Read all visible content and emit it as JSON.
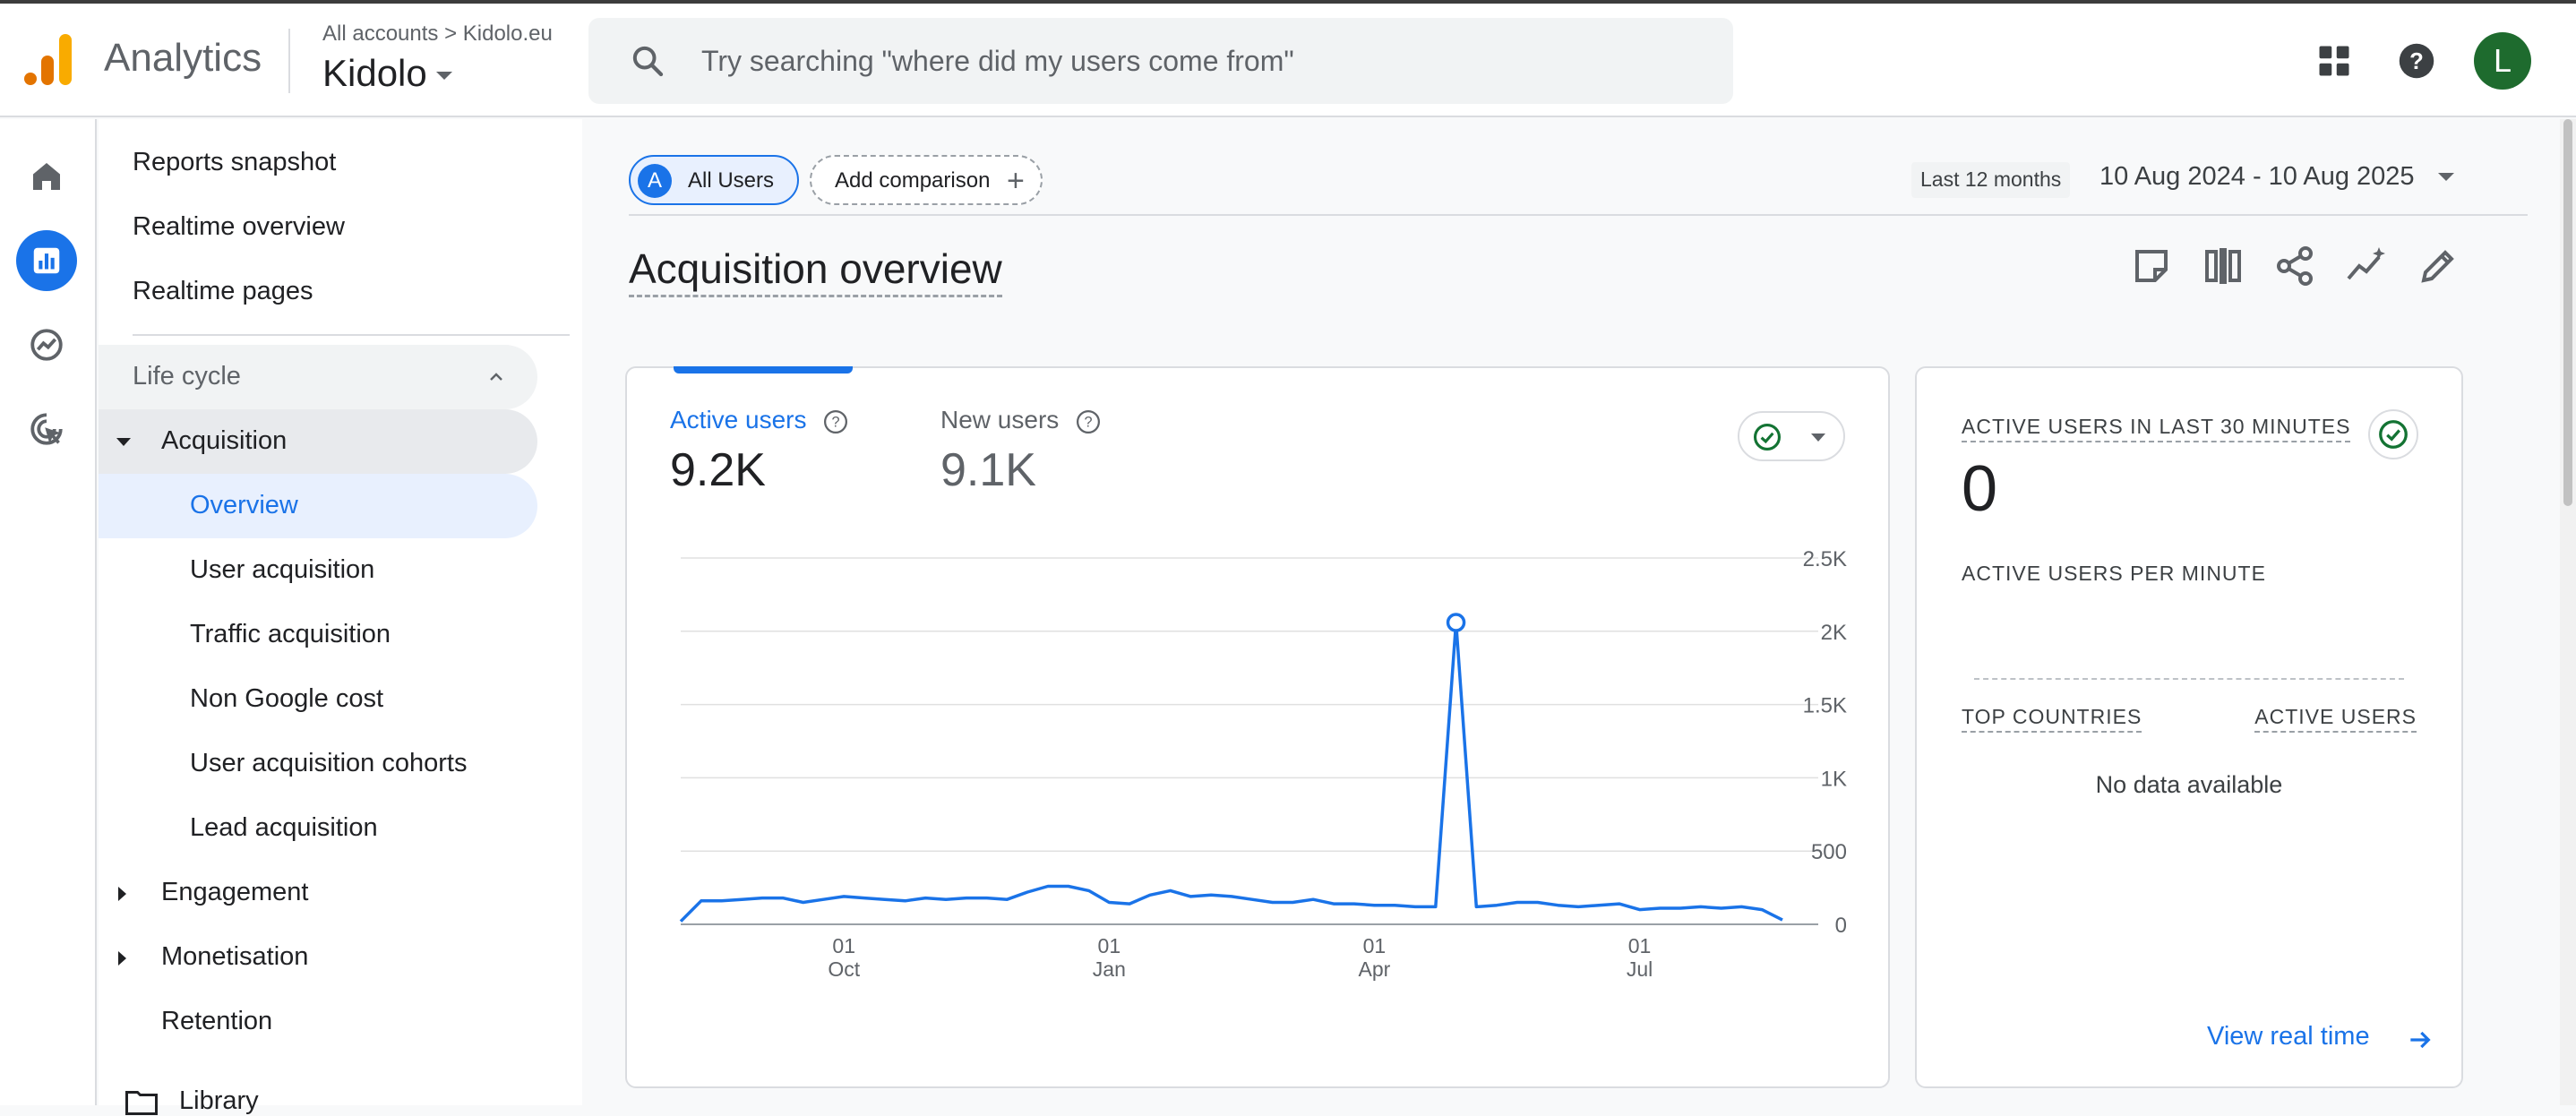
{
  "header": {
    "app_name": "Analytics",
    "breadcrumb_root": "All accounts",
    "breadcrumb_separator": ">",
    "breadcrumb_account": "Kidolo.eu",
    "property": "Kidolo",
    "search_placeholder": "Try searching \"where did my users come from\"",
    "avatar_letter": "L",
    "avatar_color": "#1e6b2e",
    "icons": [
      "apps-grid-icon",
      "help-icon"
    ]
  },
  "rail": {
    "items": [
      "home-icon",
      "reports-icon",
      "explore-icon",
      "advertising-icon"
    ],
    "active": "reports-icon",
    "accent": "#1a73e8"
  },
  "nav": {
    "items": {
      "reports_snapshot": "Reports snapshot",
      "realtime_overview": "Realtime overview",
      "realtime_pages": "Realtime pages",
      "life_cycle": "Life cycle",
      "acquisition": "Acquisition",
      "overview": "Overview",
      "user_acquisition": "User acquisition",
      "traffic_acquisition": "Traffic acquisition",
      "non_google_cost": "Non Google cost",
      "user_acquisition_cohorts": "User acquisition cohorts",
      "lead_acquisition": "Lead acquisition",
      "engagement": "Engagement",
      "monetisation": "Monetisation",
      "retention": "Retention",
      "library": "Library"
    },
    "selected": "Overview"
  },
  "toolbar": {
    "segment_badge": "A",
    "segment_label": "All Users",
    "add_comparison": "Add comparison",
    "add_icon": "+",
    "period_label": "Last 12 months",
    "date_range": "10 Aug 2024 - 10 Aug 2025"
  },
  "page": {
    "title": "Acquisition overview",
    "actions": [
      "customize-report-icon",
      "compare-icon",
      "share-icon",
      "insights-icon",
      "edit-icon"
    ]
  },
  "overview_card": {
    "metric1_label": "Active users",
    "metric1_value": "9.2K",
    "metric2_label": "New users",
    "metric2_value": "9.1K",
    "status_icon": "check-circle-icon"
  },
  "chart_data": {
    "type": "line",
    "title": "",
    "series": [
      {
        "name": "Active users",
        "color": "#1a73e8",
        "values": [
          20,
          160,
          160,
          170,
          180,
          180,
          150,
          170,
          190,
          180,
          170,
          160,
          180,
          170,
          180,
          180,
          170,
          220,
          260,
          260,
          230,
          150,
          140,
          200,
          230,
          190,
          200,
          190,
          170,
          150,
          150,
          170,
          140,
          140,
          130,
          130,
          120,
          120,
          2060,
          120,
          130,
          150,
          150,
          130,
          120,
          130,
          140,
          100,
          110,
          110,
          120,
          110,
          120,
          100,
          30
        ]
      }
    ],
    "highlight_index": 38,
    "x_tick_labels": [
      {
        "day": "01",
        "month": "Oct",
        "index": 8
      },
      {
        "day": "01",
        "month": "Jan",
        "index": 21
      },
      {
        "day": "01",
        "month": "Apr",
        "index": 34
      },
      {
        "day": "01",
        "month": "Jul",
        "index": 47
      }
    ],
    "y_ticks": [
      0,
      500,
      1000,
      1500,
      2000,
      2500
    ],
    "y_tick_labels": [
      "0",
      "500",
      "1K",
      "1.5K",
      "2K",
      "2.5K"
    ],
    "ylim": [
      0,
      2500
    ],
    "grid": true,
    "y_axis_side": "right"
  },
  "realtime_card": {
    "label": "ACTIVE USERS IN LAST 30 MINUTES",
    "value": "0",
    "per_minute_label": "ACTIVE USERS PER MINUTE",
    "col1": "TOP COUNTRIES",
    "col2": "ACTIVE USERS",
    "empty_text": "No data available",
    "link": "View real time",
    "status_icon": "check-circle-icon"
  }
}
